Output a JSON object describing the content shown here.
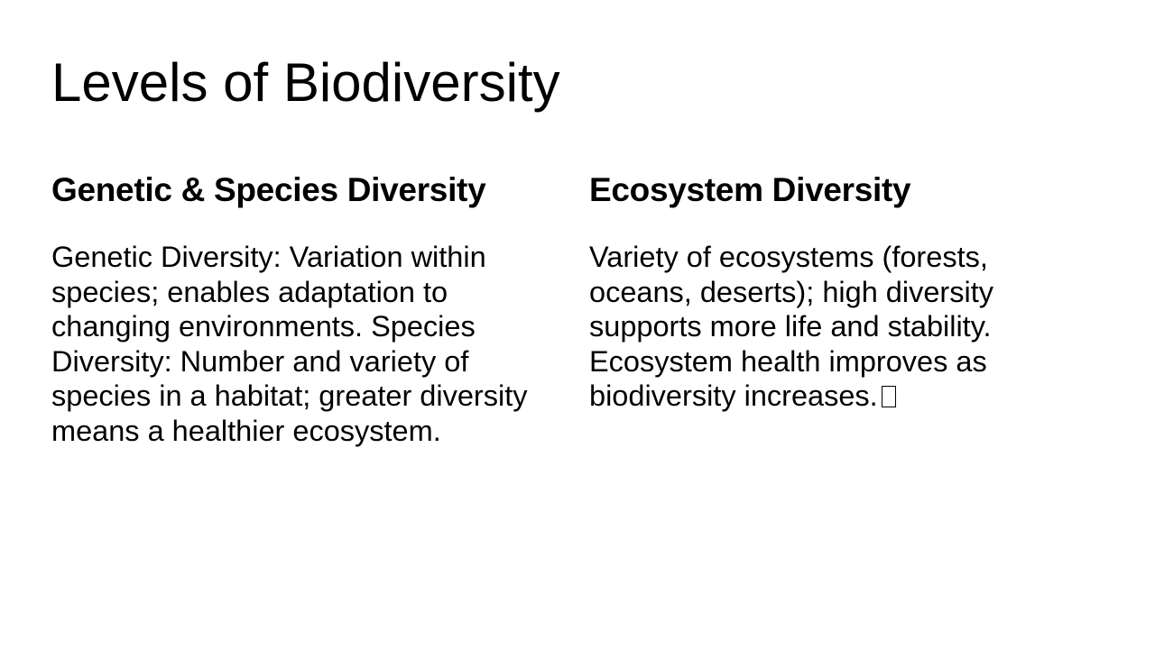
{
  "slide": {
    "title": "Levels of Biodiversity",
    "left": {
      "heading": "Genetic & Species Diversity",
      "body": "Genetic Diversity: Variation within species; enables adaptation to changing environments. Species Diversity: Number and variety of species in a habitat; greater diversity means a healthier ecosystem."
    },
    "right": {
      "heading": "Ecosystem Diversity",
      "body": "Variety of ecosystems (forests, oceans, deserts); high diversity supports more life and stability. Ecosystem health improves as biodiversity increases.",
      "trailing_icon": "missing-glyph-icon"
    }
  }
}
